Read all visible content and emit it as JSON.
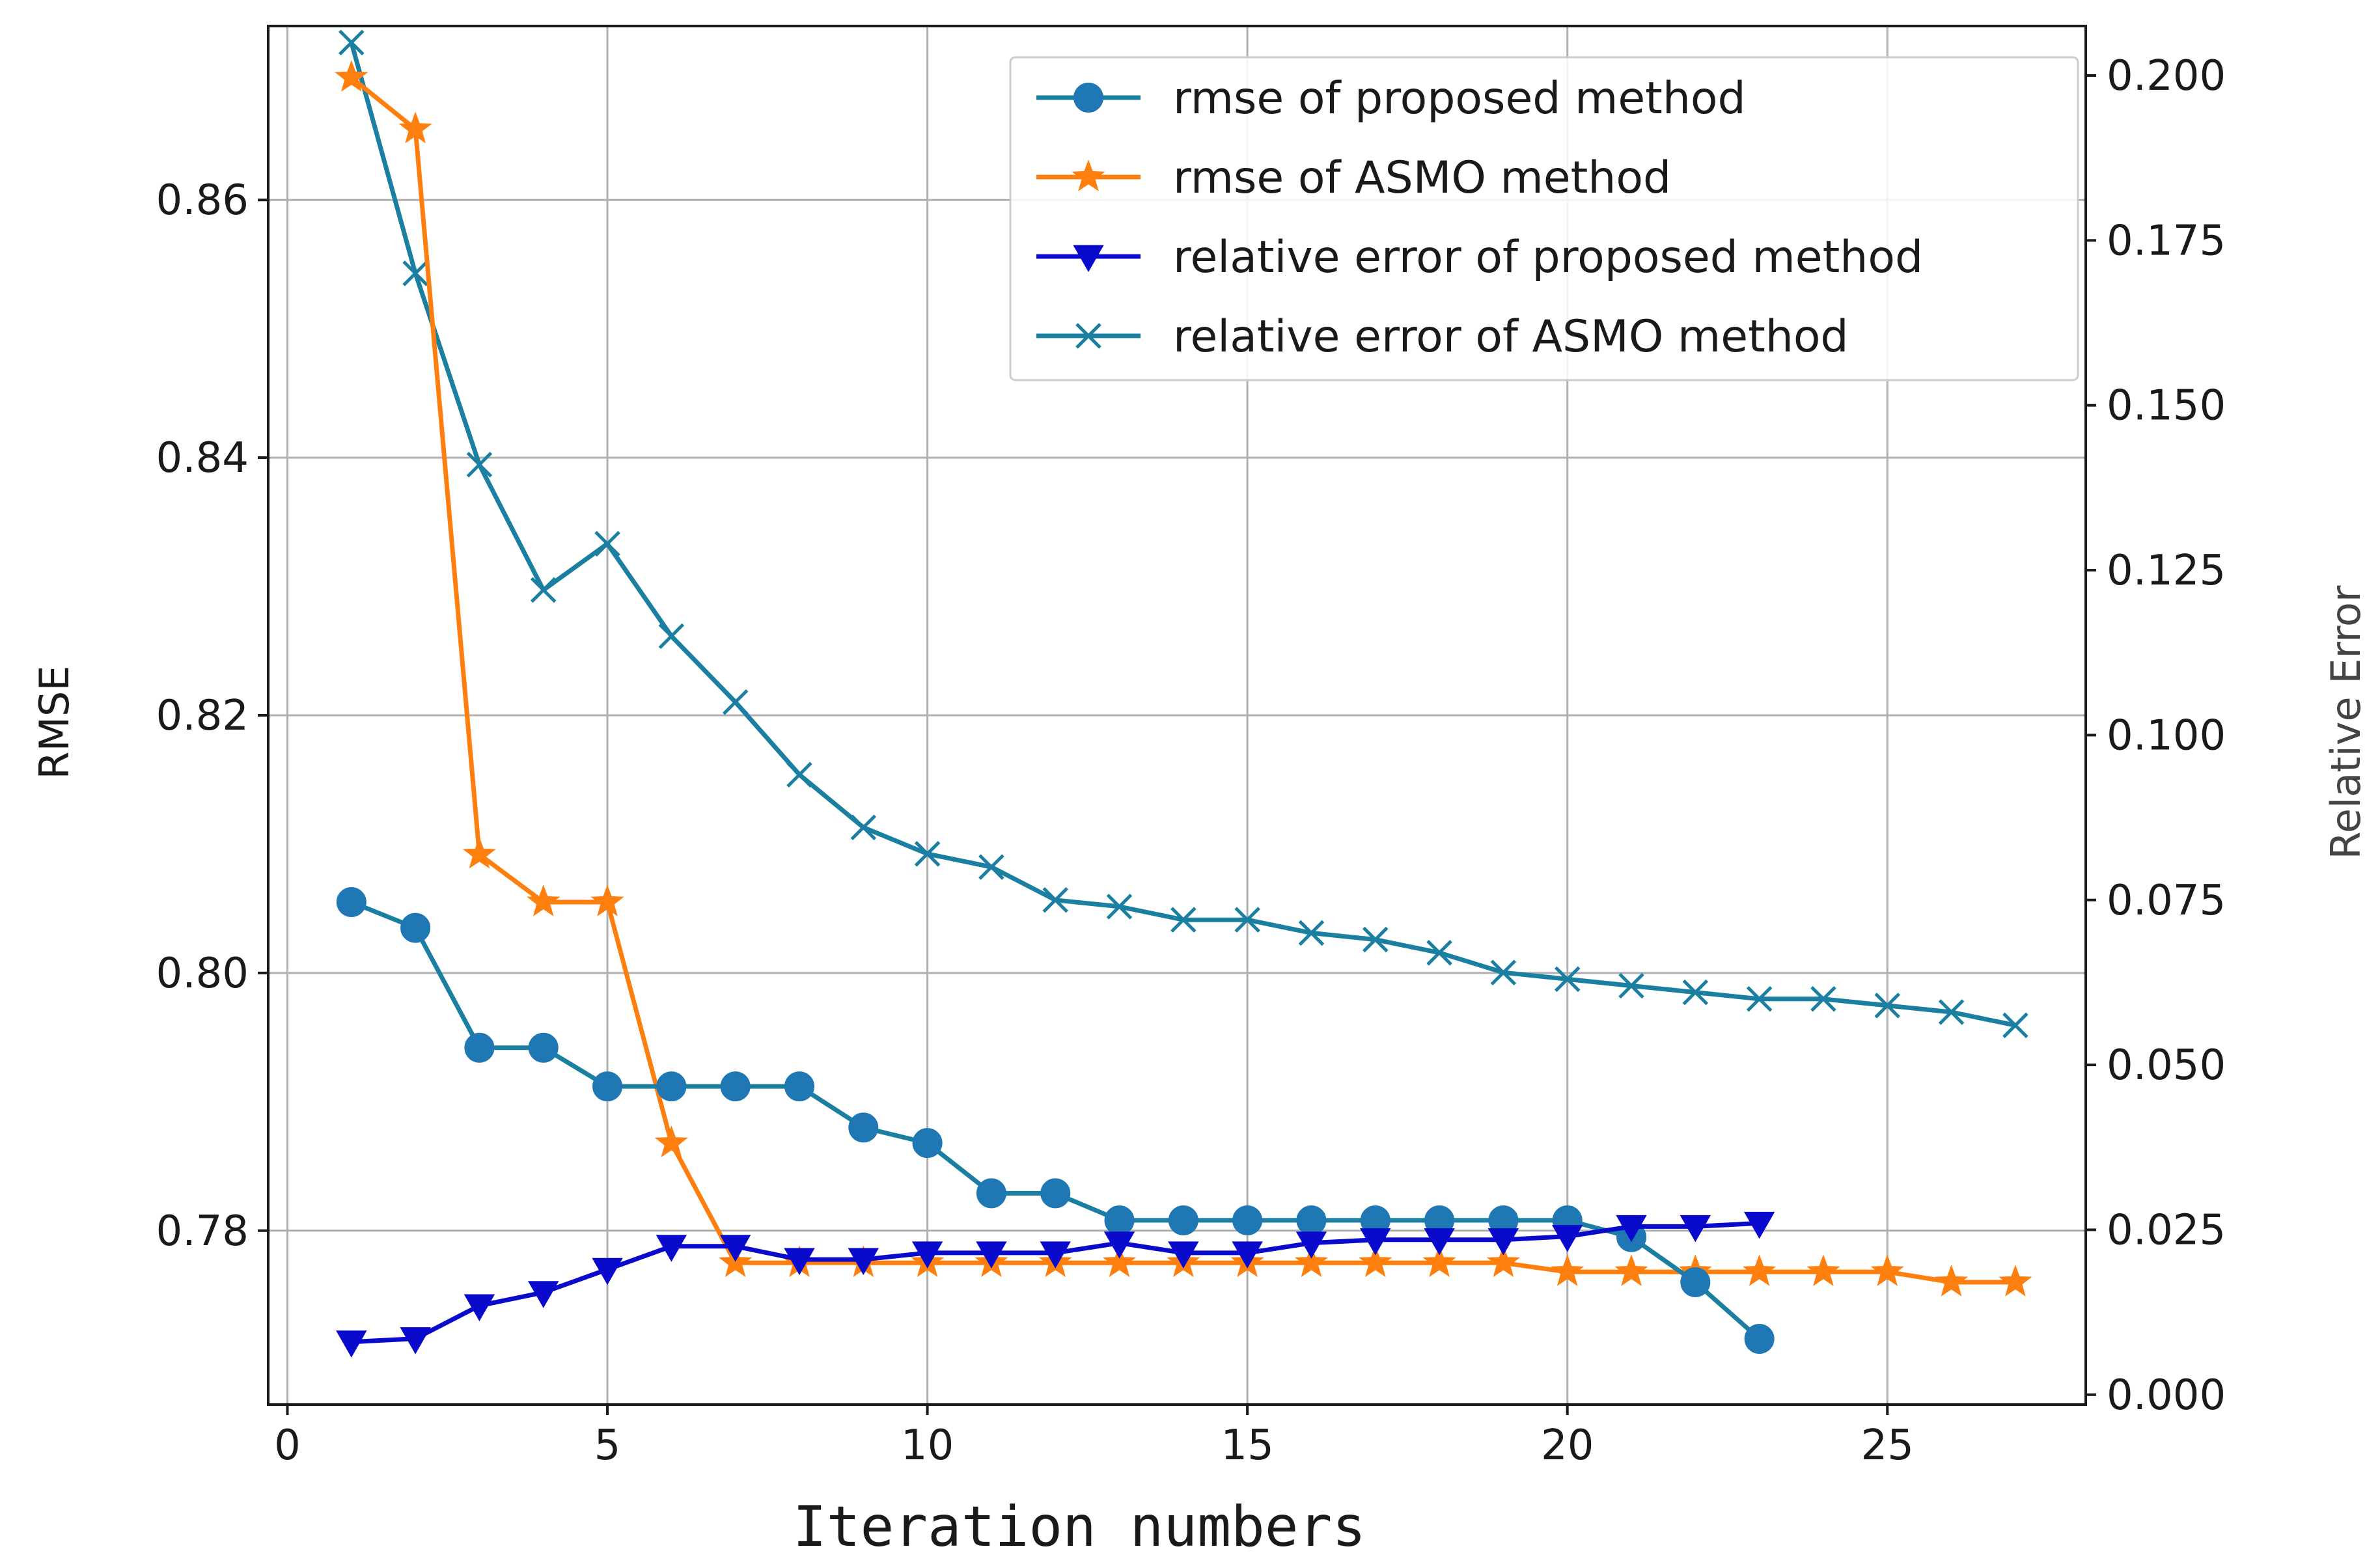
{
  "chart_data": {
    "type": "line",
    "title": "",
    "xlabel": "Iteration numbers",
    "ylabel": "RMSE",
    "y2label": "Relative Error",
    "xlim": [
      -0.3,
      28.1
    ],
    "ylim": [
      0.7665,
      0.8735
    ],
    "y2lim": [
      -0.0015,
      0.2075
    ],
    "xticks": [
      0,
      5,
      10,
      15,
      20,
      25
    ],
    "xtick_labels": [
      "0",
      "5",
      "10",
      "15",
      "20",
      "25"
    ],
    "yticks": [
      0.78,
      0.8,
      0.82,
      0.84,
      0.86
    ],
    "ytick_labels": [
      "0.78",
      "0.80",
      "0.82",
      "0.84",
      "0.86"
    ],
    "y2ticks": [
      0.0,
      0.025,
      0.05,
      0.075,
      0.1,
      0.125,
      0.15,
      0.175,
      0.2
    ],
    "y2tick_labels": [
      "0.000",
      "0.025",
      "0.050",
      "0.075",
      "0.100",
      "0.125",
      "0.150",
      "0.175",
      "0.200"
    ],
    "grid": true,
    "legend_position": "top-right",
    "series": [
      {
        "name": "rmse of proposed method",
        "axis": "left",
        "color": "#1f77b4",
        "line_color": "#1a7fa0",
        "marker": "circle",
        "x": [
          1,
          2,
          3,
          4,
          5,
          6,
          7,
          8,
          9,
          10,
          11,
          12,
          13,
          14,
          15,
          16,
          17,
          18,
          19,
          20,
          21,
          22,
          23
        ],
        "values": [
          0.8055,
          0.8035,
          0.7942,
          0.7942,
          0.7912,
          0.7912,
          0.7912,
          0.7912,
          0.788,
          0.7868,
          0.7829,
          0.7829,
          0.7808,
          0.7808,
          0.7808,
          0.7808,
          0.7808,
          0.7808,
          0.7808,
          0.7808,
          0.7795,
          0.776,
          0.7716
        ]
      },
      {
        "name": "rmse of ASMO method",
        "axis": "left",
        "color": "#ff7f0e",
        "line_color": "#ff7f0e",
        "marker": "star",
        "x": [
          1,
          2,
          3,
          4,
          5,
          6,
          7,
          8,
          9,
          10,
          11,
          12,
          13,
          14,
          15,
          16,
          17,
          18,
          19,
          20,
          21,
          22,
          23,
          24,
          25,
          26,
          27
        ],
        "values": [
          0.8695,
          0.8655,
          0.8092,
          0.8055,
          0.8055,
          0.7868,
          0.7775,
          0.7775,
          0.7775,
          0.7775,
          0.7775,
          0.7775,
          0.7775,
          0.7775,
          0.7775,
          0.7775,
          0.7775,
          0.7775,
          0.7775,
          0.7768,
          0.7768,
          0.7768,
          0.7768,
          0.7768,
          0.7768,
          0.776,
          0.776
        ]
      },
      {
        "name": "relative error of proposed method",
        "axis": "right",
        "color": "#0a0acd",
        "line_color": "#0a0acd",
        "marker": "triangle-down",
        "x": [
          1,
          2,
          3,
          4,
          5,
          6,
          7,
          8,
          9,
          10,
          11,
          12,
          13,
          14,
          15,
          16,
          17,
          18,
          19,
          20,
          21,
          22,
          23
        ],
        "values": [
          0.008,
          0.0085,
          0.0135,
          0.0155,
          0.019,
          0.0225,
          0.0225,
          0.0205,
          0.0205,
          0.0215,
          0.0215,
          0.0215,
          0.023,
          0.0215,
          0.0215,
          0.023,
          0.0235,
          0.0235,
          0.0235,
          0.024,
          0.0255,
          0.0255,
          0.026
        ]
      },
      {
        "name": "relative error of ASMO method",
        "axis": "right",
        "color": "#1a7fa0",
        "line_color": "#1a7fa0",
        "marker": "x",
        "x": [
          1,
          2,
          3,
          4,
          5,
          6,
          7,
          8,
          9,
          10,
          11,
          12,
          13,
          14,
          15,
          16,
          17,
          18,
          19,
          20,
          21,
          22,
          23,
          24,
          25,
          26,
          27
        ],
        "values": [
          0.205,
          0.17,
          0.141,
          0.122,
          0.129,
          0.115,
          0.105,
          0.094,
          0.086,
          0.082,
          0.08,
          0.075,
          0.074,
          0.072,
          0.072,
          0.07,
          0.069,
          0.067,
          0.064,
          0.063,
          0.062,
          0.061,
          0.06,
          0.06,
          0.059,
          0.058,
          0.056
        ]
      }
    ]
  }
}
